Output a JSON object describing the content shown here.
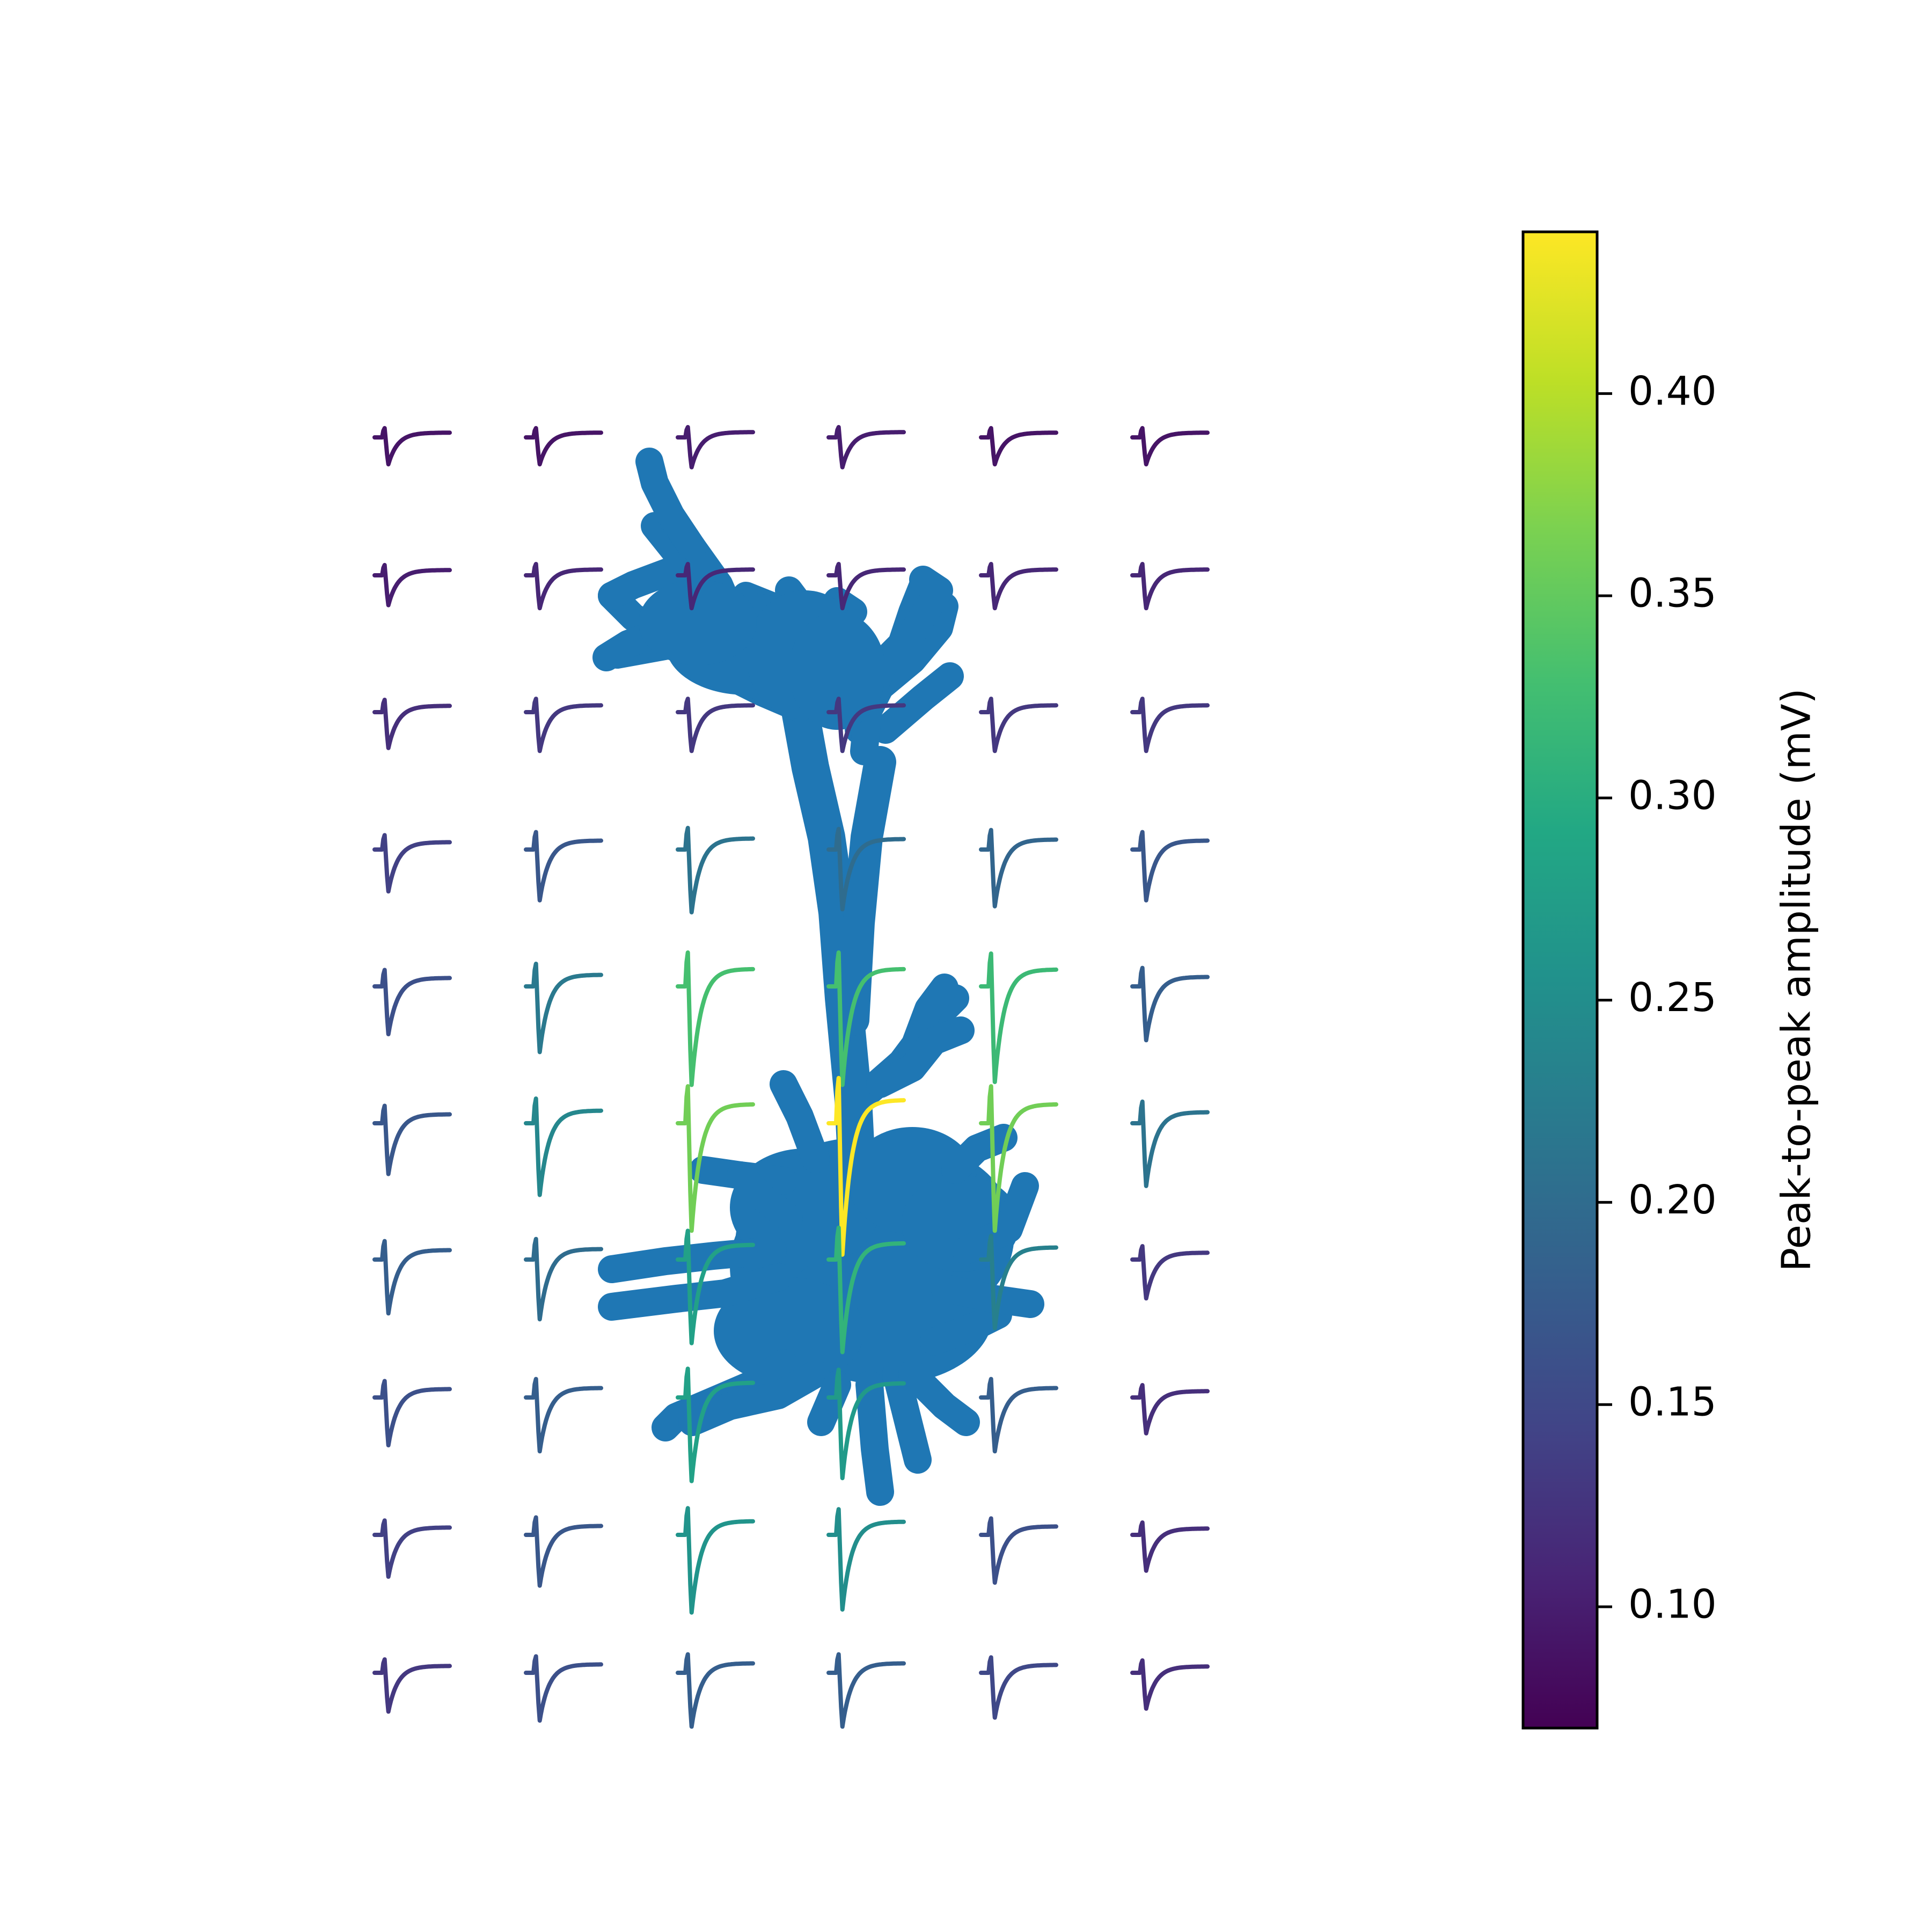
{
  "chart_data": {
    "type": "heatmap",
    "description_kind": "grid of extracellular spike waveforms overlaid on neuron morphology, colored by peak-to-peak amplitude",
    "grid": {
      "rows": 10,
      "cols": 6
    },
    "peak_to_peak_mV": [
      [
        0.09,
        0.09,
        0.1,
        0.1,
        0.09,
        0.09
      ],
      [
        0.1,
        0.11,
        0.11,
        0.11,
        0.11,
        0.11
      ],
      [
        0.12,
        0.13,
        0.13,
        0.13,
        0.13,
        0.13
      ],
      [
        0.14,
        0.17,
        0.21,
        0.2,
        0.19,
        0.17
      ],
      [
        0.16,
        0.22,
        0.33,
        0.33,
        0.32,
        0.18
      ],
      [
        0.17,
        0.24,
        0.36,
        0.44,
        0.36,
        0.21
      ],
      [
        0.18,
        0.2,
        0.28,
        0.31,
        0.23,
        0.13
      ],
      [
        0.16,
        0.18,
        0.28,
        0.27,
        0.18,
        0.12
      ],
      [
        0.14,
        0.17,
        0.26,
        0.25,
        0.16,
        0.12
      ],
      [
        0.13,
        0.16,
        0.18,
        0.18,
        0.15,
        0.12
      ]
    ],
    "morphology_color": "#1f77b4",
    "colormap": "viridis",
    "colorbar": {
      "label": "Peak-to-peak amplitude (mV)",
      "range": [
        0.07,
        0.44
      ],
      "ticks": [
        0.1,
        0.15,
        0.2,
        0.25,
        0.3,
        0.35,
        0.4
      ],
      "tick_labels": [
        "0.10",
        "0.15",
        "0.20",
        "0.25",
        "0.30",
        "0.35",
        "0.40"
      ]
    },
    "axes_visible": false
  }
}
